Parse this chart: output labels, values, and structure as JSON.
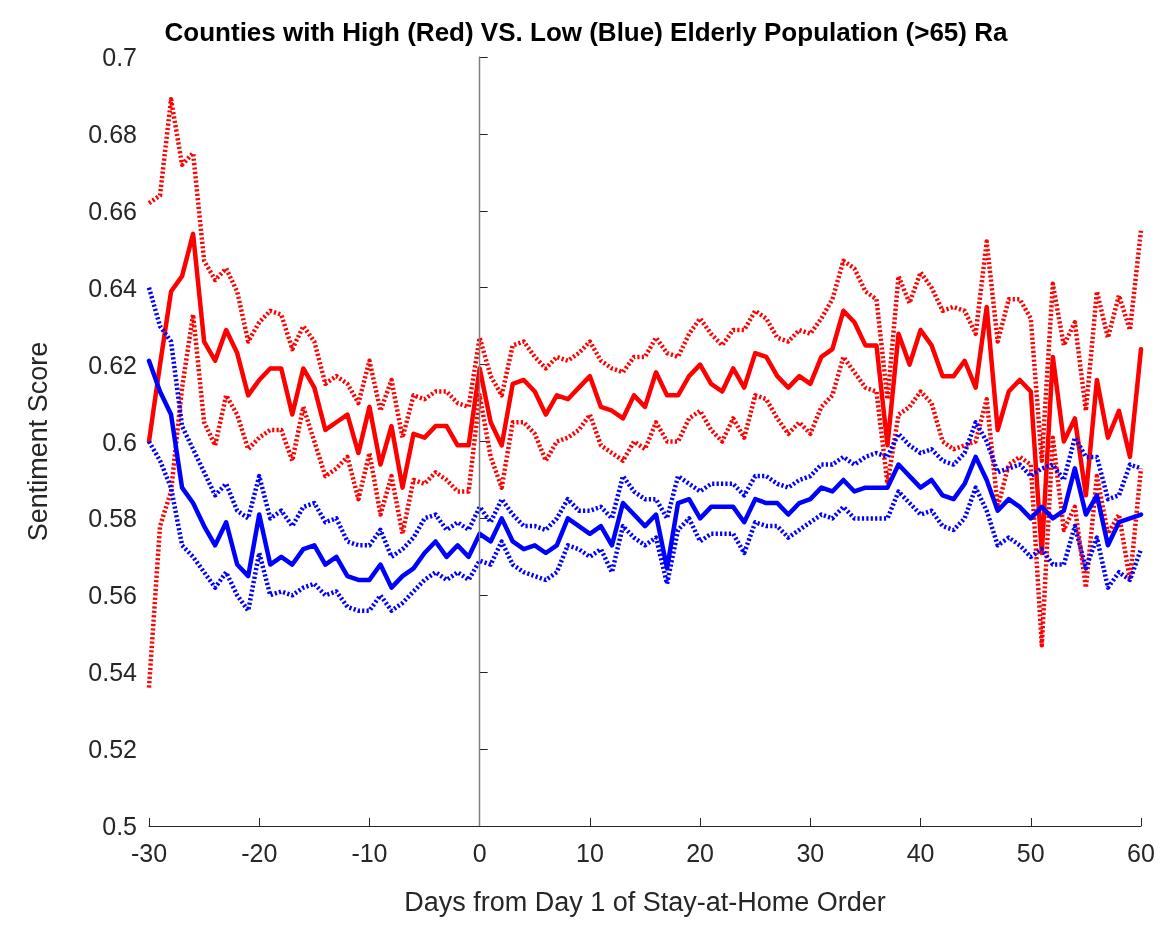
{
  "chart_data": {
    "type": "line",
    "title": "Counties with High (Red) VS. Low (Blue) Elderly Population (>65) Ra",
    "xlabel": "Days from Day 1 of Stay-at-Home Order",
    "ylabel": "Sentiment Score",
    "x": [
      -30,
      -29,
      -28,
      -27,
      -26,
      -25,
      -24,
      -23,
      -22,
      -21,
      -20,
      -19,
      -18,
      -17,
      -16,
      -15,
      -14,
      -13,
      -12,
      -11,
      -10,
      -9,
      -8,
      -7,
      -6,
      -5,
      -4,
      -3,
      -2,
      -1,
      0,
      1,
      2,
      3,
      4,
      5,
      6,
      7,
      8,
      9,
      10,
      11,
      12,
      13,
      14,
      15,
      16,
      17,
      18,
      19,
      20,
      21,
      22,
      23,
      24,
      25,
      26,
      27,
      28,
      29,
      30,
      31,
      32,
      33,
      34,
      35,
      36,
      37,
      38,
      39,
      40,
      41,
      42,
      43,
      44,
      45,
      46,
      47,
      48,
      49,
      50,
      51,
      52,
      53,
      54,
      55,
      56,
      57,
      58,
      59,
      60
    ],
    "series": [
      {
        "color": "#ff0000",
        "line_style": "solid",
        "values": [
          0.6,
          0.62,
          0.639,
          0.643,
          0.654,
          0.626,
          0.621,
          0.629,
          0.623,
          0.612,
          0.616,
          0.619,
          0.619,
          0.607,
          0.619,
          0.614,
          0.603,
          0.605,
          0.607,
          0.597,
          0.609,
          0.594,
          0.604,
          0.588,
          0.602,
          0.601,
          0.604,
          0.604,
          0.599,
          0.599,
          0.619,
          0.605,
          0.599,
          0.615,
          0.616,
          0.613,
          0.607,
          0.612,
          0.611,
          0.614,
          0.617,
          0.609,
          0.608,
          0.606,
          0.612,
          0.609,
          0.618,
          0.612,
          0.612,
          0.617,
          0.62,
          0.615,
          0.613,
          0.619,
          0.614,
          0.623,
          0.622,
          0.617,
          0.614,
          0.617,
          0.615,
          0.622,
          0.624,
          0.634,
          0.631,
          0.625,
          0.625,
          0.599,
          0.628,
          0.62,
          0.629,
          0.625,
          0.617,
          0.617,
          0.621,
          0.614,
          0.635,
          0.603,
          0.613,
          0.616,
          0.613,
          0.571,
          0.622,
          0.6,
          0.606,
          0.586,
          0.616,
          0.601,
          0.608,
          0.596,
          0.624
        ]
      },
      {
        "color": "#ff0000",
        "line_style": "dotted",
        "values": [
          0.662,
          0.664,
          0.689,
          0.672,
          0.675,
          0.647,
          0.642,
          0.645,
          0.639,
          0.626,
          0.631,
          0.634,
          0.633,
          0.624,
          0.63,
          0.626,
          0.615,
          0.617,
          0.615,
          0.61,
          0.621,
          0.608,
          0.616,
          0.601,
          0.612,
          0.611,
          0.613,
          0.613,
          0.61,
          0.609,
          0.627,
          0.617,
          0.612,
          0.625,
          0.626,
          0.622,
          0.619,
          0.622,
          0.621,
          0.623,
          0.626,
          0.621,
          0.619,
          0.618,
          0.622,
          0.622,
          0.627,
          0.623,
          0.622,
          0.628,
          0.632,
          0.628,
          0.625,
          0.629,
          0.629,
          0.634,
          0.632,
          0.627,
          0.626,
          0.629,
          0.628,
          0.632,
          0.637,
          0.647,
          0.645,
          0.639,
          0.637,
          0.611,
          0.643,
          0.636,
          0.644,
          0.64,
          0.634,
          0.635,
          0.634,
          0.628,
          0.652,
          0.626,
          0.637,
          0.637,
          0.632,
          0.595,
          0.641,
          0.625,
          0.631,
          0.608,
          0.639,
          0.627,
          0.638,
          0.629,
          0.655
        ]
      },
      {
        "color": "#ff0000",
        "line_style": "dotted",
        "values": [
          0.536,
          0.578,
          0.587,
          0.614,
          0.633,
          0.605,
          0.599,
          0.612,
          0.607,
          0.598,
          0.601,
          0.603,
          0.603,
          0.595,
          0.609,
          0.6,
          0.591,
          0.593,
          0.596,
          0.585,
          0.597,
          0.581,
          0.591,
          0.576,
          0.59,
          0.589,
          0.592,
          0.59,
          0.587,
          0.587,
          0.612,
          0.596,
          0.588,
          0.605,
          0.605,
          0.602,
          0.595,
          0.6,
          0.601,
          0.603,
          0.607,
          0.599,
          0.597,
          0.595,
          0.6,
          0.598,
          0.605,
          0.6,
          0.6,
          0.606,
          0.608,
          0.603,
          0.6,
          0.606,
          0.601,
          0.612,
          0.611,
          0.606,
          0.602,
          0.605,
          0.602,
          0.609,
          0.612,
          0.622,
          0.618,
          0.614,
          0.613,
          0.589,
          0.607,
          0.609,
          0.613,
          0.61,
          0.6,
          0.598,
          0.599,
          0.6,
          0.611,
          0.583,
          0.594,
          0.596,
          0.594,
          0.547,
          0.601,
          0.577,
          0.583,
          0.562,
          0.591,
          0.576,
          0.581,
          0.564,
          0.593
        ]
      },
      {
        "color": "#0000ff",
        "line_style": "solid",
        "values": [
          0.621,
          0.613,
          0.607,
          0.588,
          0.584,
          0.578,
          0.573,
          0.579,
          0.568,
          0.565,
          0.581,
          0.568,
          0.57,
          0.568,
          0.572,
          0.573,
          0.568,
          0.57,
          0.565,
          0.564,
          0.564,
          0.568,
          0.562,
          0.565,
          0.567,
          0.571,
          0.574,
          0.57,
          0.573,
          0.57,
          0.576,
          0.574,
          0.58,
          0.574,
          0.572,
          0.573,
          0.571,
          0.573,
          0.58,
          0.578,
          0.576,
          0.578,
          0.573,
          0.584,
          0.581,
          0.578,
          0.581,
          0.567,
          0.584,
          0.585,
          0.58,
          0.583,
          0.583,
          0.583,
          0.579,
          0.585,
          0.584,
          0.584,
          0.581,
          0.584,
          0.585,
          0.588,
          0.587,
          0.59,
          0.587,
          0.588,
          0.588,
          0.588,
          0.594,
          0.591,
          0.588,
          0.59,
          0.586,
          0.585,
          0.589,
          0.596,
          0.59,
          0.582,
          0.585,
          0.583,
          0.58,
          0.583,
          0.58,
          0.582,
          0.593,
          0.581,
          0.586,
          0.573,
          0.579,
          0.58,
          0.581
        ]
      },
      {
        "color": "#0000ff",
        "line_style": "dotted",
        "values": [
          0.64,
          0.63,
          0.626,
          0.604,
          0.598,
          0.592,
          0.586,
          0.589,
          0.582,
          0.58,
          0.591,
          0.58,
          0.582,
          0.578,
          0.583,
          0.584,
          0.579,
          0.58,
          0.574,
          0.573,
          0.573,
          0.577,
          0.57,
          0.572,
          0.575,
          0.58,
          0.581,
          0.577,
          0.579,
          0.577,
          0.583,
          0.579,
          0.585,
          0.581,
          0.578,
          0.578,
          0.577,
          0.58,
          0.585,
          0.582,
          0.582,
          0.583,
          0.58,
          0.591,
          0.587,
          0.585,
          0.585,
          0.58,
          0.591,
          0.589,
          0.587,
          0.589,
          0.589,
          0.589,
          0.586,
          0.591,
          0.591,
          0.589,
          0.588,
          0.59,
          0.591,
          0.594,
          0.594,
          0.596,
          0.594,
          0.596,
          0.597,
          0.596,
          0.602,
          0.599,
          0.597,
          0.598,
          0.595,
          0.594,
          0.597,
          0.605,
          0.6,
          0.592,
          0.593,
          0.594,
          0.591,
          0.593,
          0.594,
          0.59,
          0.601,
          0.596,
          0.596,
          0.585,
          0.586,
          0.594,
          0.593
        ]
      },
      {
        "color": "#0000ff",
        "line_style": "dotted",
        "values": [
          0.6,
          0.595,
          0.588,
          0.573,
          0.57,
          0.566,
          0.562,
          0.566,
          0.56,
          0.556,
          0.571,
          0.56,
          0.561,
          0.56,
          0.562,
          0.563,
          0.56,
          0.561,
          0.557,
          0.556,
          0.556,
          0.56,
          0.556,
          0.558,
          0.561,
          0.564,
          0.566,
          0.564,
          0.566,
          0.564,
          0.569,
          0.568,
          0.574,
          0.568,
          0.566,
          0.565,
          0.564,
          0.566,
          0.573,
          0.572,
          0.57,
          0.572,
          0.566,
          0.578,
          0.575,
          0.573,
          0.575,
          0.563,
          0.577,
          0.58,
          0.574,
          0.576,
          0.576,
          0.576,
          0.571,
          0.579,
          0.578,
          0.578,
          0.575,
          0.577,
          0.579,
          0.581,
          0.58,
          0.583,
          0.58,
          0.58,
          0.58,
          0.58,
          0.587,
          0.584,
          0.581,
          0.582,
          0.578,
          0.577,
          0.58,
          0.588,
          0.582,
          0.573,
          0.575,
          0.573,
          0.57,
          0.572,
          0.568,
          0.568,
          0.578,
          0.567,
          0.575,
          0.562,
          0.566,
          0.564,
          0.572
        ]
      }
    ],
    "xlim": [
      -30,
      60
    ],
    "xticks": [
      -30,
      -20,
      -10,
      0,
      10,
      20,
      30,
      40,
      50,
      60
    ],
    "ylim": [
      0.5,
      0.7
    ],
    "yticks": [
      0.5,
      0.52,
      0.54,
      0.56,
      0.58,
      0.6,
      0.62,
      0.64,
      0.66,
      0.68,
      0.7
    ],
    "ref_lines": [
      {
        "axis": "x",
        "value": 0,
        "color": "#808080",
        "line_style": "solid"
      }
    ],
    "grid": false,
    "legend": false,
    "marker": "none"
  }
}
